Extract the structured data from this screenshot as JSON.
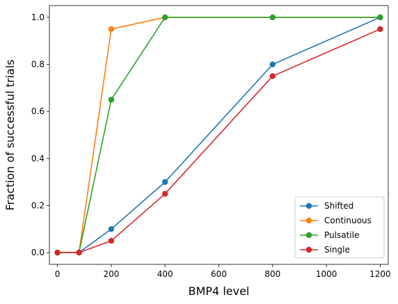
{
  "chart_data": {
    "type": "line",
    "title": "",
    "xlabel": "BMP4 level",
    "ylabel": "Fraction of successful trials",
    "xlim": [
      -30,
      1230
    ],
    "ylim": [
      -0.05,
      1.05
    ],
    "xticks": [
      0,
      200,
      400,
      600,
      800,
      1000,
      1200
    ],
    "yticks": [
      0.0,
      0.2,
      0.4,
      0.6,
      0.8,
      1.0
    ],
    "xtick_labels": [
      "0",
      "200",
      "400",
      "600",
      "800",
      "1000",
      "1200"
    ],
    "ytick_labels": [
      "0.0",
      "0.2",
      "0.4",
      "0.6",
      "0.8",
      "1.0"
    ],
    "grid": false,
    "legend_position": "lower-right",
    "x": [
      0,
      80,
      200,
      400,
      800,
      1200
    ],
    "series": [
      {
        "name": "Shifted",
        "color": "#1f77b4",
        "values": [
          0.0,
          0.0,
          0.1,
          0.3,
          0.8,
          1.0
        ]
      },
      {
        "name": "Continuous",
        "color": "#ff7f0e",
        "values": [
          0.0,
          0.0,
          0.95,
          1.0,
          1.0,
          1.0
        ]
      },
      {
        "name": "Pulsatile",
        "color": "#2ca02c",
        "values": [
          0.0,
          0.0,
          0.65,
          1.0,
          1.0,
          1.0
        ]
      },
      {
        "name": "Single",
        "color": "#d62728",
        "values": [
          0.0,
          0.0,
          0.05,
          0.25,
          0.75,
          0.95
        ]
      }
    ]
  }
}
